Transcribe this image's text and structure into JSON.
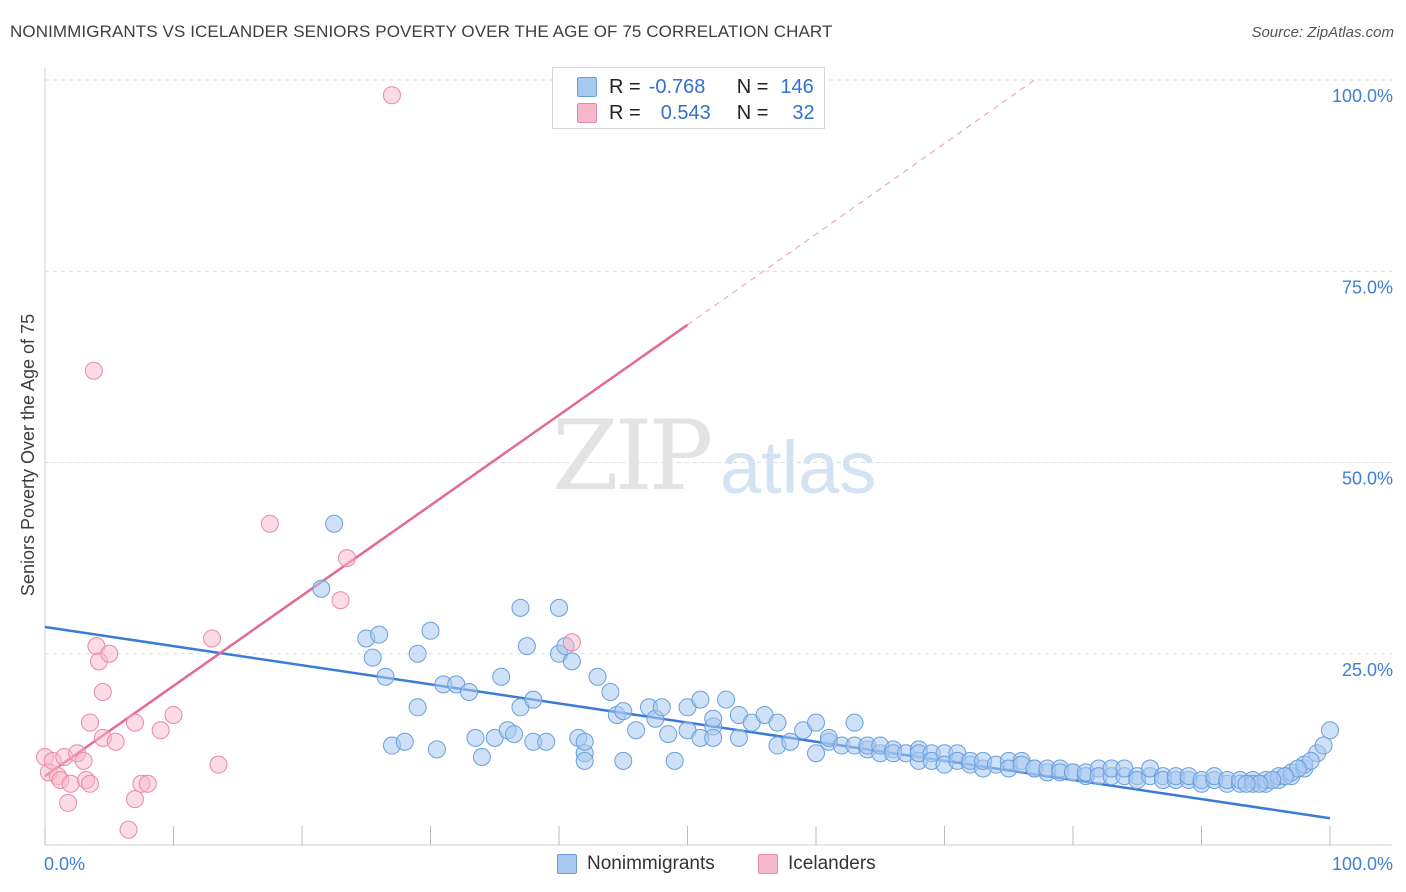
{
  "header": {
    "title": "NONIMMIGRANTS VS ICELANDER SENIORS POVERTY OVER THE AGE OF 75 CORRELATION CHART",
    "source": "Source: ZipAtlas.com"
  },
  "watermark": {
    "zip": "ZIP",
    "atlas": "atlas"
  },
  "legend_stats": [
    {
      "r_label": "R =",
      "r_value": "-0.768",
      "n_label": "N =",
      "n_value": "146",
      "fill": "#a8c8f0",
      "stroke": "#6a9fdd"
    },
    {
      "r_label": "R =",
      "r_value": "0.543",
      "n_label": "N =",
      "n_value": "32",
      "fill": "#f8b8cc",
      "stroke": "#e88aa6"
    }
  ],
  "bottom_legend": [
    {
      "label": "Nonimmigrants",
      "fill": "#a8c8f0",
      "stroke": "#6a9fdd"
    },
    {
      "label": "Icelanders",
      "fill": "#f8b8cc",
      "stroke": "#e88aa6"
    }
  ],
  "chart_data": {
    "type": "scatter",
    "title": "NONIMMIGRANTS VS ICELANDER SENIORS POVERTY OVER THE AGE OF 75 CORRELATION CHART",
    "ylabel": "Seniors Poverty Over the Age of 75",
    "xlabel": "",
    "xlim": [
      0,
      100
    ],
    "ylim": [
      0,
      100
    ],
    "x_tick_labels": [
      "0.0%",
      "100.0%"
    ],
    "y_tick_labels": [
      "25.0%",
      "50.0%",
      "75.0%",
      "100.0%"
    ],
    "grid": true,
    "legend_position": "top-center",
    "colors": {
      "nonimmigrants": "#6a9fdd",
      "icelanders": "#e88aa6",
      "blue_line": "#3a7bd5",
      "pink_line": "#e26a95",
      "axis_text": "#3d7fd6"
    },
    "series": [
      {
        "name": "Nonimmigrants",
        "trend": {
          "x": [
            0,
            100
          ],
          "y": [
            28.5,
            3.5
          ]
        },
        "points": [
          [
            21.5,
            33.5
          ],
          [
            22.5,
            42
          ],
          [
            25,
            27
          ],
          [
            25.5,
            24.5
          ],
          [
            26,
            27.5
          ],
          [
            26.5,
            22
          ],
          [
            27,
            13
          ],
          [
            28,
            13.5
          ],
          [
            29,
            25
          ],
          [
            29,
            18
          ],
          [
            30,
            28
          ],
          [
            30.5,
            12.5
          ],
          [
            31,
            21
          ],
          [
            32,
            21
          ],
          [
            33,
            20
          ],
          [
            33.5,
            14
          ],
          [
            34,
            11.5
          ],
          [
            35,
            14
          ],
          [
            35.5,
            22
          ],
          [
            36,
            15
          ],
          [
            36.5,
            14.5
          ],
          [
            37,
            18
          ],
          [
            37,
            31
          ],
          [
            37.5,
            26
          ],
          [
            38,
            19
          ],
          [
            38,
            13.5
          ],
          [
            39,
            13.5
          ],
          [
            40,
            31
          ],
          [
            40,
            25
          ],
          [
            40.5,
            26
          ],
          [
            41,
            24
          ],
          [
            41.5,
            14
          ],
          [
            42,
            12
          ],
          [
            42,
            13.5
          ],
          [
            42,
            11
          ],
          [
            43,
            22
          ],
          [
            44,
            20
          ],
          [
            44.5,
            17
          ],
          [
            45,
            17.5
          ],
          [
            45,
            11
          ],
          [
            46,
            15
          ],
          [
            47,
            18
          ],
          [
            47.5,
            16.5
          ],
          [
            48,
            18
          ],
          [
            48.5,
            14.5
          ],
          [
            49,
            11
          ],
          [
            50,
            18
          ],
          [
            50,
            15
          ],
          [
            51,
            14
          ],
          [
            51,
            19
          ],
          [
            52,
            15.5
          ],
          [
            52,
            16.5
          ],
          [
            52,
            14
          ],
          [
            53,
            19
          ],
          [
            54,
            14
          ],
          [
            54,
            17
          ],
          [
            55,
            16
          ],
          [
            56,
            17
          ],
          [
            57,
            13
          ],
          [
            57,
            16
          ],
          [
            58,
            13.5
          ],
          [
            59,
            15
          ],
          [
            60,
            12
          ],
          [
            60,
            16
          ],
          [
            61,
            13.5
          ],
          [
            61,
            14
          ],
          [
            62,
            13
          ],
          [
            63,
            13
          ],
          [
            63,
            16
          ],
          [
            64,
            12.5
          ],
          [
            64,
            13
          ],
          [
            65,
            12
          ],
          [
            65,
            13
          ],
          [
            66,
            12.5
          ],
          [
            66,
            12
          ],
          [
            67,
            12
          ],
          [
            68,
            12.5
          ],
          [
            68,
            11
          ],
          [
            68,
            12
          ],
          [
            69,
            12
          ],
          [
            69,
            11
          ],
          [
            70,
            12
          ],
          [
            70,
            10.5
          ],
          [
            71,
            12
          ],
          [
            71,
            11
          ],
          [
            72,
            10.5
          ],
          [
            72,
            11
          ],
          [
            73,
            10
          ],
          [
            73,
            11
          ],
          [
            74,
            10.5
          ],
          [
            75,
            11
          ],
          [
            75,
            10
          ],
          [
            76,
            11
          ],
          [
            76,
            10.5
          ],
          [
            77,
            10
          ],
          [
            77,
            10
          ],
          [
            78,
            9.5
          ],
          [
            78,
            10
          ],
          [
            79,
            10
          ],
          [
            79,
            9.5
          ],
          [
            80,
            9.5
          ],
          [
            80,
            9.5
          ],
          [
            81,
            9
          ],
          [
            81,
            9.5
          ],
          [
            82,
            10
          ],
          [
            82,
            9
          ],
          [
            83,
            9
          ],
          [
            83,
            10
          ],
          [
            84,
            9
          ],
          [
            84,
            10
          ],
          [
            85,
            9
          ],
          [
            85,
            8.5
          ],
          [
            86,
            9
          ],
          [
            86,
            10
          ],
          [
            87,
            9
          ],
          [
            87,
            8.5
          ],
          [
            88,
            8.5
          ],
          [
            88,
            9
          ],
          [
            89,
            8.5
          ],
          [
            89,
            9
          ],
          [
            90,
            8
          ],
          [
            90,
            8.5
          ],
          [
            91,
            8.5
          ],
          [
            91,
            9
          ],
          [
            92,
            8
          ],
          [
            92,
            8.5
          ],
          [
            93,
            8
          ],
          [
            93,
            8.5
          ],
          [
            94,
            8.5
          ],
          [
            94,
            8
          ],
          [
            95,
            8
          ],
          [
            95,
            8.5
          ],
          [
            96,
            8.5
          ],
          [
            96,
            9
          ],
          [
            97,
            9
          ],
          [
            97,
            9.5
          ],
          [
            98,
            10
          ],
          [
            98,
            10.5
          ],
          [
            99,
            12
          ],
          [
            100,
            15
          ],
          [
            99.5,
            13
          ],
          [
            98.5,
            11
          ],
          [
            97.5,
            10
          ],
          [
            96.5,
            9
          ],
          [
            95.5,
            8.5
          ],
          [
            94.5,
            8
          ],
          [
            93.5,
            8
          ]
        ]
      },
      {
        "name": "Icelanders",
        "trend_solid": {
          "x": [
            0,
            50
          ],
          "y": [
            9,
            68
          ]
        },
        "trend_dashed": {
          "x": [
            50,
            77
          ],
          "y": [
            68,
            100
          ]
        },
        "points": [
          [
            0,
            11.5
          ],
          [
            0.3,
            9.5
          ],
          [
            0.6,
            11
          ],
          [
            1,
            9
          ],
          [
            1.2,
            8.5
          ],
          [
            1.5,
            11.5
          ],
          [
            1.8,
            5.5
          ],
          [
            2,
            8
          ],
          [
            2.5,
            12
          ],
          [
            3,
            11
          ],
          [
            3.2,
            8.5
          ],
          [
            3.5,
            8
          ],
          [
            3.5,
            16
          ],
          [
            3.8,
            62
          ],
          [
            4,
            26
          ],
          [
            4.2,
            24
          ],
          [
            4.5,
            20
          ],
          [
            4.5,
            14
          ],
          [
            5,
            25
          ],
          [
            5.5,
            13.5
          ],
          [
            6.5,
            2
          ],
          [
            7,
            6
          ],
          [
            7,
            16
          ],
          [
            7.5,
            8
          ],
          [
            8,
            8
          ],
          [
            9,
            15
          ],
          [
            10,
            17
          ],
          [
            13,
            27
          ],
          [
            13.5,
            10.5
          ],
          [
            17.5,
            42
          ],
          [
            23,
            32
          ],
          [
            23.5,
            37.5
          ],
          [
            27,
            98
          ],
          [
            41,
            26.5
          ]
        ]
      }
    ]
  }
}
